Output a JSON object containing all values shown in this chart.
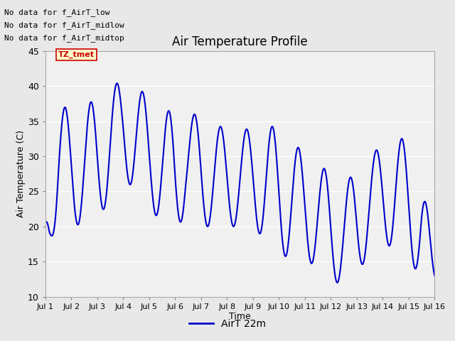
{
  "title": "Air Temperature Profile",
  "xlabel": "Time",
  "ylabel": "Air Temperature (C)",
  "ylim": [
    10,
    45
  ],
  "xlim": [
    0,
    15
  ],
  "xtick_labels": [
    "Jul 1",
    "Jul 2",
    "Jul 3",
    "Jul 4",
    "Jul 5",
    "Jul 6",
    "Jul 7",
    "Jul 8",
    "Jul 9",
    "Jul 10",
    "Jul 11",
    "Jul 12",
    "Jul 13",
    "Jul 14",
    "Jul 15",
    "Jul 16"
  ],
  "ytick_vals": [
    10,
    15,
    20,
    25,
    30,
    35,
    40,
    45
  ],
  "line_color": "#0000CC",
  "line_width": 1.5,
  "legend_label": "AirT 22m",
  "no_data_texts": [
    "No data for f_AirT_low",
    "No data for f_AirT_midlow",
    "No data for f_AirT_midtop"
  ],
  "tz_label": "TZ_tmet",
  "background_color": "#e8e8e8",
  "plot_bg_color": "#f0f0f0",
  "grid_color": "#ffffff"
}
